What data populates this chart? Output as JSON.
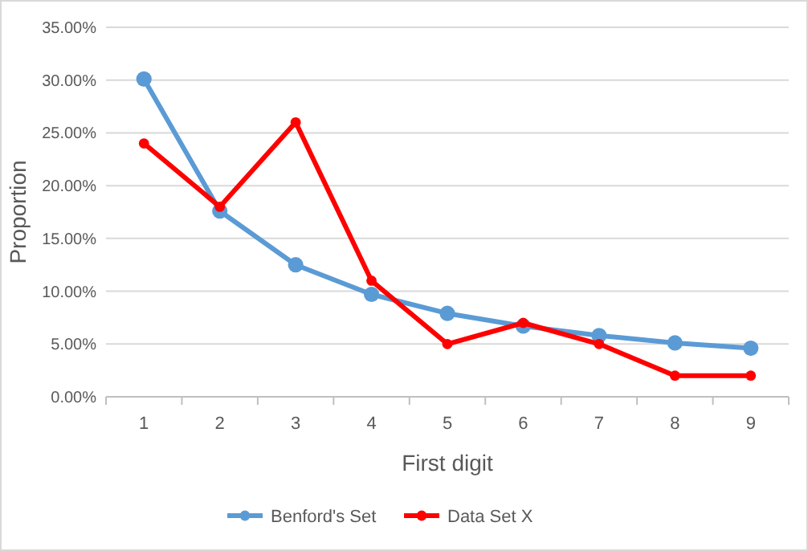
{
  "chart_data": {
    "type": "line",
    "xlabel": "First digit",
    "ylabel": "Proportion",
    "categories": [
      "1",
      "2",
      "3",
      "4",
      "5",
      "6",
      "7",
      "8",
      "9"
    ],
    "series": [
      {
        "name": "Benford's Set",
        "color": "#5b9bd5",
        "values": [
          30.1,
          17.6,
          12.5,
          9.7,
          7.9,
          6.7,
          5.8,
          5.1,
          4.6
        ]
      },
      {
        "name": "Data Set X",
        "color": "#ff0000",
        "values": [
          24,
          18,
          26,
          11,
          5,
          7,
          5,
          2,
          2
        ]
      }
    ],
    "ylim": [
      0,
      35
    ],
    "yticks": [
      {
        "value": 0,
        "label": "0.00%"
      },
      {
        "value": 5,
        "label": "5.00%"
      },
      {
        "value": 10,
        "label": "10.00%"
      },
      {
        "value": 15,
        "label": "15.00%"
      },
      {
        "value": 20,
        "label": "20.00%"
      },
      {
        "value": 25,
        "label": "25.00%"
      },
      {
        "value": 30,
        "label": "30.00%"
      },
      {
        "value": 35,
        "label": "35.00%"
      }
    ],
    "grid": "y",
    "legend": "bottom",
    "marker": "circle",
    "line_style": "solid"
  }
}
